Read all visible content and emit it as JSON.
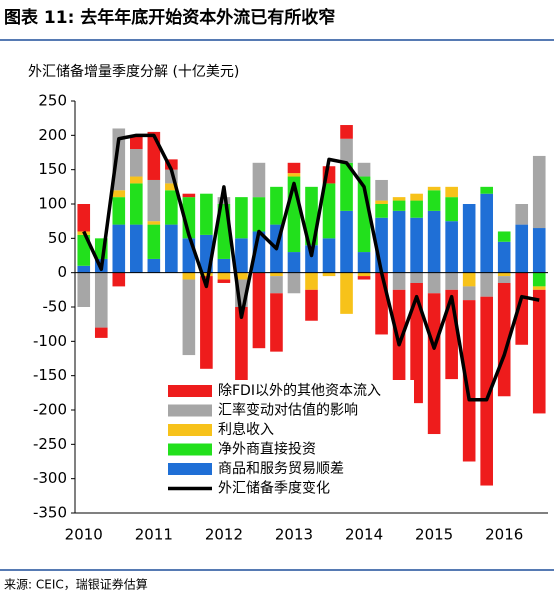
{
  "chart_data": {
    "type": "bar-line",
    "title": "图表 11: 去年年底开始资本外流已有所收窄",
    "subtitle": "外汇储备增量季度分解 (十亿美元)",
    "source": "来源: CEIC，瑞银证券估算",
    "categories": [
      "2010",
      null,
      null,
      null,
      "2011",
      null,
      null,
      null,
      "2012",
      null,
      null,
      null,
      "2013",
      null,
      null,
      null,
      "2014",
      null,
      null,
      null,
      "2015",
      null,
      null,
      null,
      "2016",
      null,
      null
    ],
    "ylim": [
      -350,
      250
    ],
    "yticks": [
      -350,
      -300,
      -250,
      -200,
      -150,
      -100,
      -50,
      0,
      50,
      100,
      150,
      200,
      250
    ],
    "series": [
      {
        "name": "商品和服务贸易顺差",
        "color": "#1f6fd6",
        "values": [
          10,
          20,
          70,
          70,
          20,
          70,
          50,
          55,
          20,
          50,
          60,
          70,
          30,
          40,
          50,
          90,
          30,
          80,
          90,
          80,
          90,
          75,
          100,
          115,
          45,
          70,
          65
        ]
      },
      {
        "name": "净外商直接投资",
        "color": "#22e01c",
        "values": [
          45,
          30,
          40,
          60,
          50,
          50,
          60,
          60,
          80,
          60,
          50,
          55,
          110,
          85,
          80,
          70,
          110,
          20,
          15,
          25,
          30,
          35,
          0,
          10,
          15,
          0,
          -20
        ]
      },
      {
        "name": "利息收入",
        "color": "#f7c21a",
        "values": [
          5,
          0,
          10,
          10,
          5,
          10,
          -10,
          -5,
          -10,
          -10,
          0,
          -5,
          5,
          -25,
          -5,
          -60,
          -5,
          5,
          5,
          10,
          5,
          15,
          -20,
          0,
          -5,
          0,
          -5
        ]
      },
      {
        "name": "汇率变动对估值的影响",
        "color": "#a6a6a6",
        "values": [
          -50,
          -80,
          90,
          40,
          60,
          20,
          -110,
          0,
          10,
          -40,
          50,
          -25,
          -30,
          0,
          0,
          35,
          20,
          30,
          -25,
          -15,
          -30,
          -25,
          -20,
          -35,
          -10,
          30,
          105
        ]
      },
      {
        "name": "除FDI以外的其他资本流入",
        "color": "#ee1c1c",
        "values": [
          40,
          -15,
          -20,
          20,
          70,
          15,
          5,
          -135,
          -5,
          -120,
          -110,
          -85,
          15,
          -45,
          25,
          20,
          -5,
          -90,
          -190,
          -175,
          -205,
          -130,
          -235,
          -275,
          -165,
          -105,
          -180
        ]
      },
      {
        "name": "外汇储备季度变化",
        "type": "line",
        "color": "#000000",
        "values": [
          60,
          5,
          195,
          200,
          200,
          150,
          55,
          -20,
          125,
          -65,
          60,
          35,
          130,
          25,
          165,
          160,
          125,
          0,
          -105,
          -35,
          -110,
          -35,
          -185,
          -185,
          -120,
          -35,
          -40
        ]
      }
    ]
  }
}
